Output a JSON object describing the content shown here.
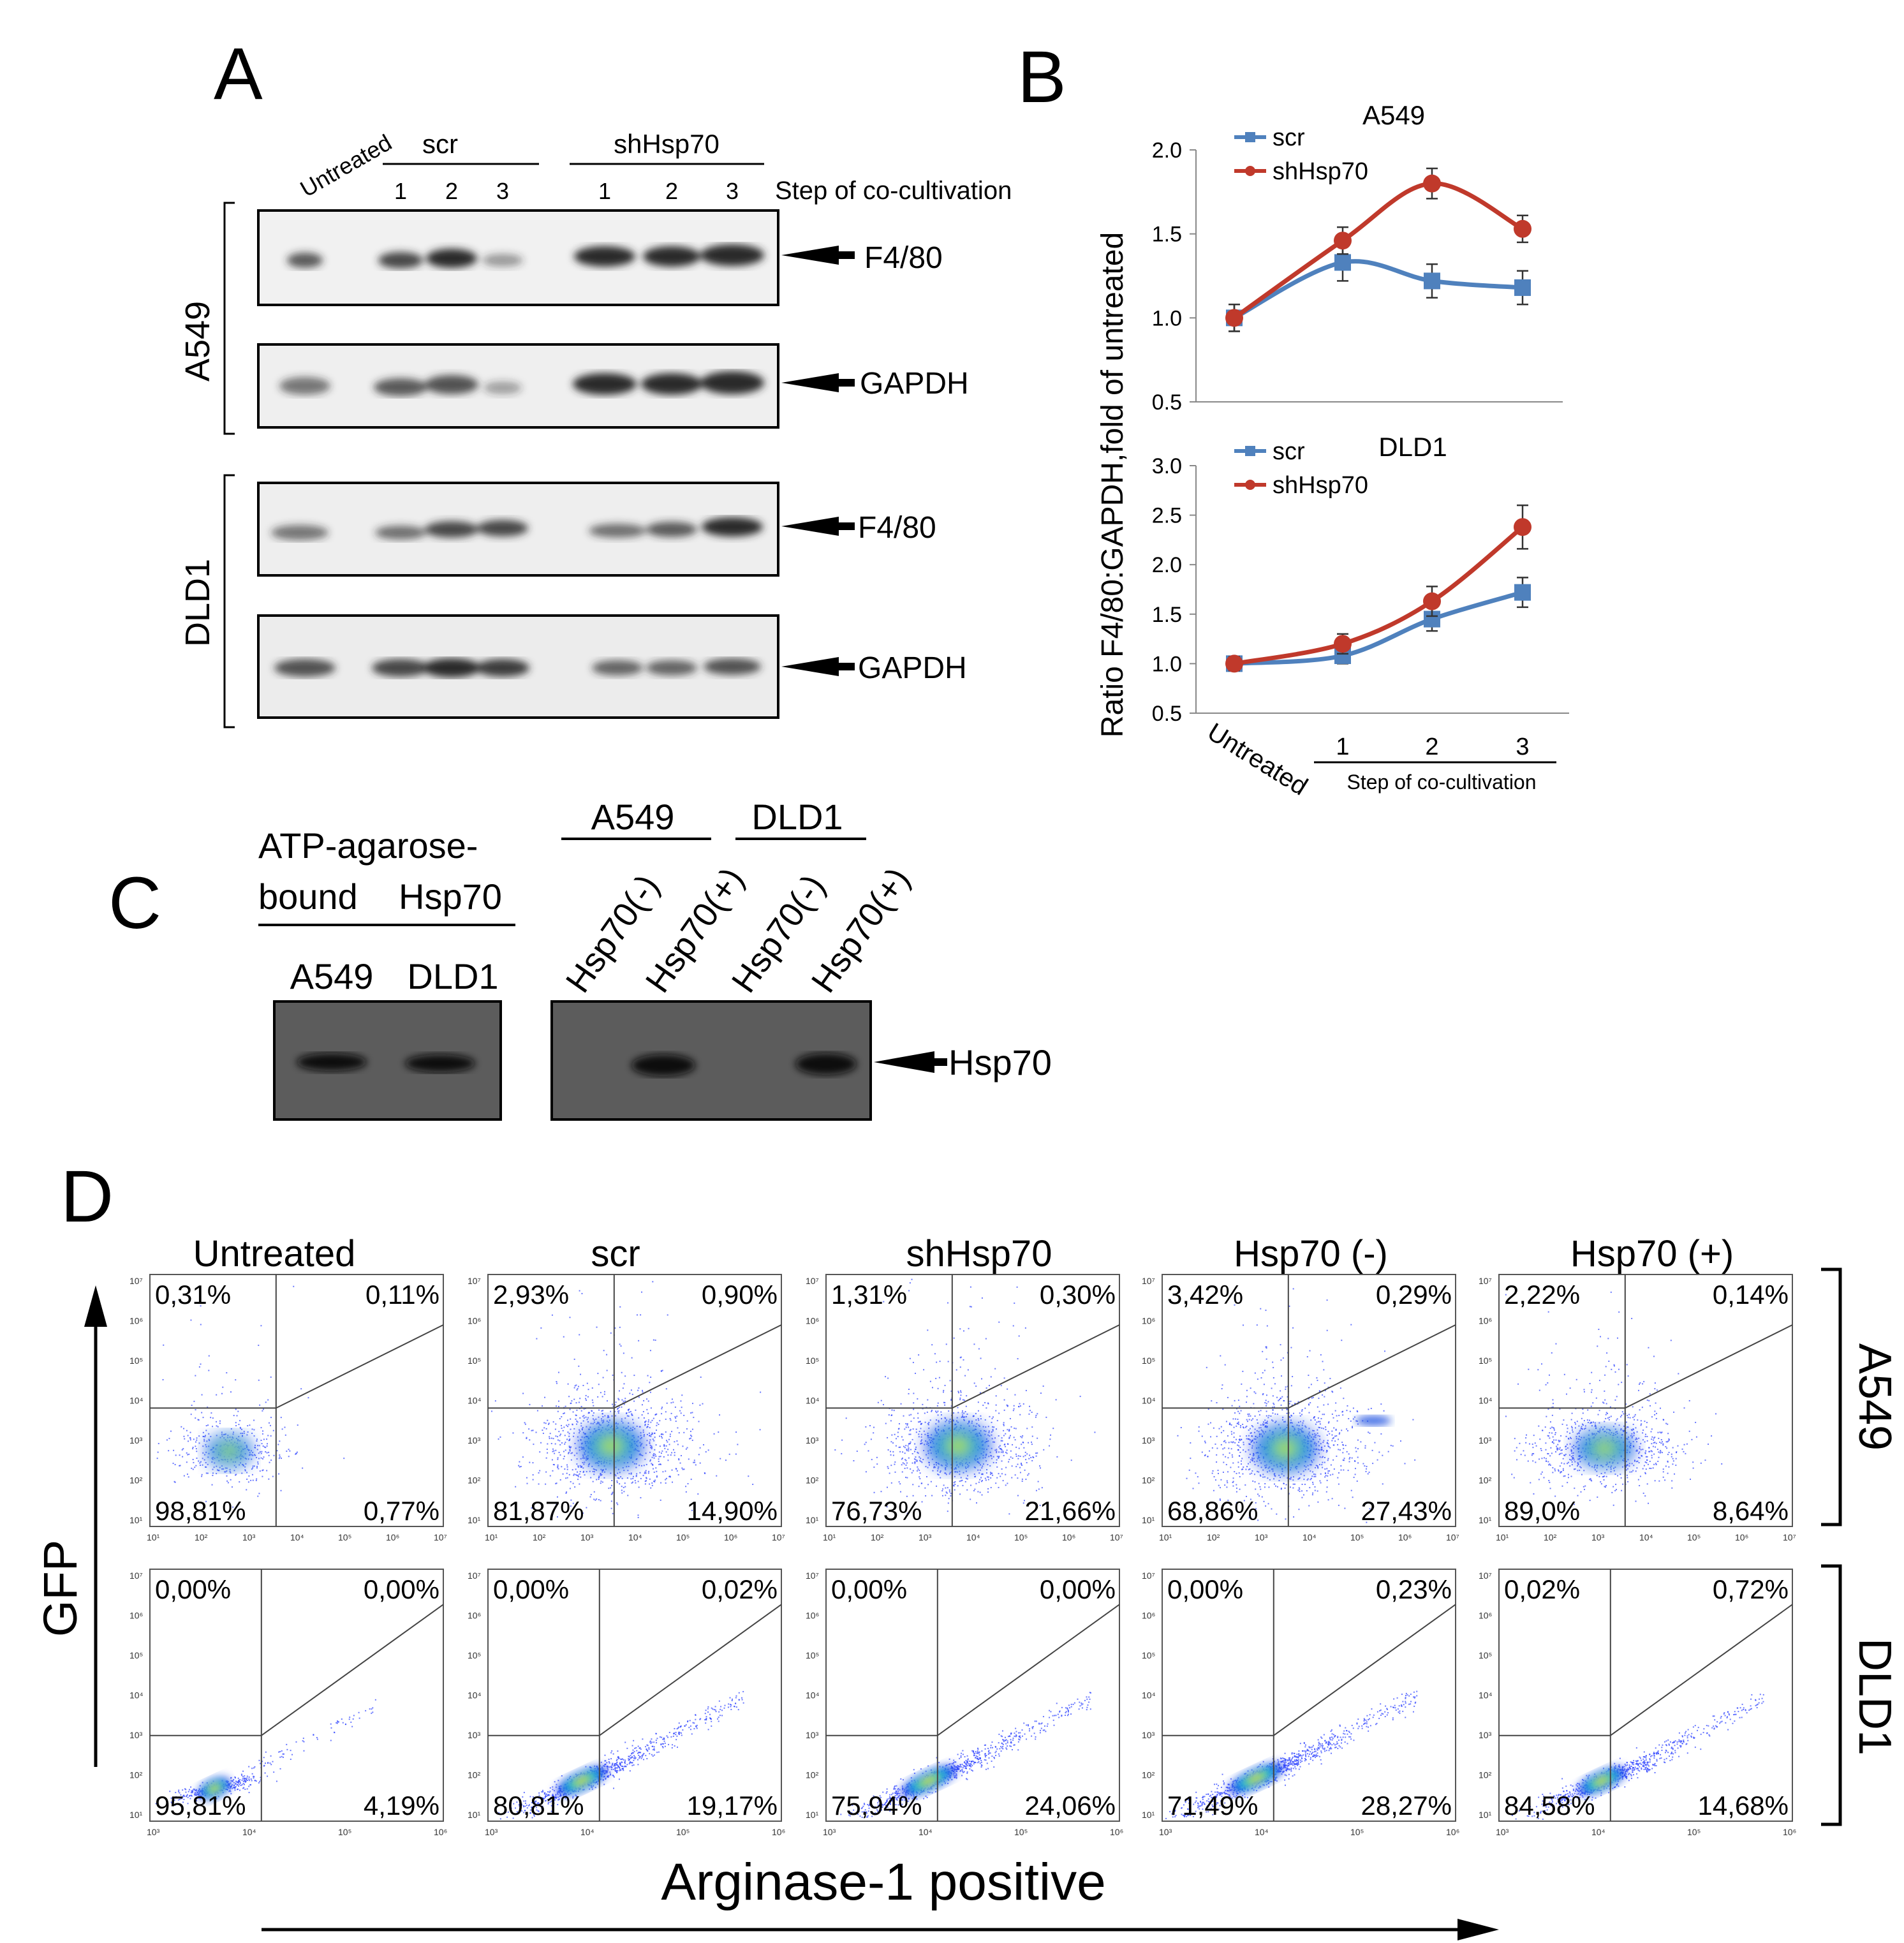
{
  "panel_a": {
    "letter": "A",
    "col_untreated": "Untreated",
    "group_scr": "scr",
    "group_sh": "shHsp70",
    "lanes": [
      "1",
      "2",
      "3",
      "1",
      "2",
      "3"
    ],
    "step_label": "Step of co-cultivation",
    "cell_a549": "A549",
    "cell_dld1": "DLD1",
    "band_f480": "F4/80",
    "band_gapdh": "GAPDH"
  },
  "panel_b": {
    "letter": "B",
    "ylabel": "Ratio F4/80:GAPDH,fold of untreated",
    "xcat_untreated": "Untreated",
    "step_label": "Step of co-cultivation"
  },
  "chart_data": [
    {
      "type": "line",
      "title": "A549",
      "categories": [
        "Untreated",
        "1",
        "2",
        "3"
      ],
      "ylim": [
        0.5,
        2.0
      ],
      "yticks": [
        "0.5",
        "1.0",
        "1.5",
        "2.0"
      ],
      "series": [
        {
          "name": "scr",
          "values": [
            1.0,
            1.33,
            1.22,
            1.18
          ],
          "err": [
            0.08,
            0.11,
            0.1,
            0.1
          ],
          "color": "#4f81bd",
          "marker": "square"
        },
        {
          "name": "shHsp70",
          "values": [
            1.0,
            1.46,
            1.8,
            1.53
          ],
          "err": [
            0.08,
            0.08,
            0.09,
            0.08
          ],
          "color": "#c0392b",
          "marker": "circle"
        }
      ]
    },
    {
      "type": "line",
      "title": "DLD1",
      "categories": [
        "Untreated",
        "1",
        "2",
        "3"
      ],
      "ylim": [
        0.5,
        3.0
      ],
      "yticks": [
        "0.5",
        "1.0",
        "1.5",
        "2.0",
        "2.5",
        "3.0"
      ],
      "series": [
        {
          "name": "scr",
          "values": [
            1.0,
            1.08,
            1.45,
            1.72
          ],
          "err": [
            0.07,
            0.08,
            0.12,
            0.15
          ],
          "color": "#4f81bd",
          "marker": "square"
        },
        {
          "name": "shHsp70",
          "values": [
            1.0,
            1.2,
            1.63,
            2.38
          ],
          "err": [
            0.07,
            0.1,
            0.15,
            0.22
          ],
          "color": "#c0392b",
          "marker": "circle"
        }
      ]
    }
  ],
  "panel_c": {
    "letter": "C",
    "atp_line1": "ATP-agarose-",
    "atp_line2a": "bound",
    "atp_line2b": "Hsp70",
    "atp_a549": "A549",
    "atp_dld1": "DLD1",
    "group_a549": "A549",
    "group_dld1": "DLD1",
    "col_labels": [
      "Hsp70(-)",
      "Hsp70(+)",
      "Hsp70(-)",
      "Hsp70(+)"
    ],
    "band_hsp70": "Hsp70"
  },
  "panel_d": {
    "letter": "D",
    "columns": [
      "Untreated",
      "scr",
      "shHsp70",
      "Hsp70 (-)",
      "Hsp70 (+)"
    ],
    "row_a549": "A549",
    "row_dld1": "DLD1",
    "y_axis": "GFP",
    "x_axis": "Arginase-1 positive",
    "a549": [
      {
        "ul": "0,31%",
        "ur": "0,11%",
        "ll": "98,81%",
        "lr": "0,77%"
      },
      {
        "ul": "2,93%",
        "ur": "0,90%",
        "ll": "81,87%",
        "lr": "14,90%"
      },
      {
        "ul": "1,31%",
        "ur": "0,30%",
        "ll": "76,73%",
        "lr": "21,66%"
      },
      {
        "ul": "3,42%",
        "ur": "0,29%",
        "ll": "68,86%",
        "lr": "27,43%"
      },
      {
        "ul": "2,22%",
        "ur": "0,14%",
        "ll": "89,0%",
        "lr": "8,64%"
      }
    ],
    "dld1": [
      {
        "ul": "0,00%",
        "ur": "0,00%",
        "ll": "95,81%",
        "lr": "4,19%"
      },
      {
        "ul": "0,00%",
        "ur": "0,02%",
        "ll": "80,81%",
        "lr": "19,17%"
      },
      {
        "ul": "0,00%",
        "ur": "0,00%",
        "ll": "75,94%",
        "lr": "24,06%"
      },
      {
        "ul": "0,00%",
        "ur": "0,23%",
        "ll": "71,49%",
        "lr": "28,27%"
      },
      {
        "ul": "0,02%",
        "ur": "0,72%",
        "ll": "84,58%",
        "lr": "14,68%"
      }
    ]
  }
}
